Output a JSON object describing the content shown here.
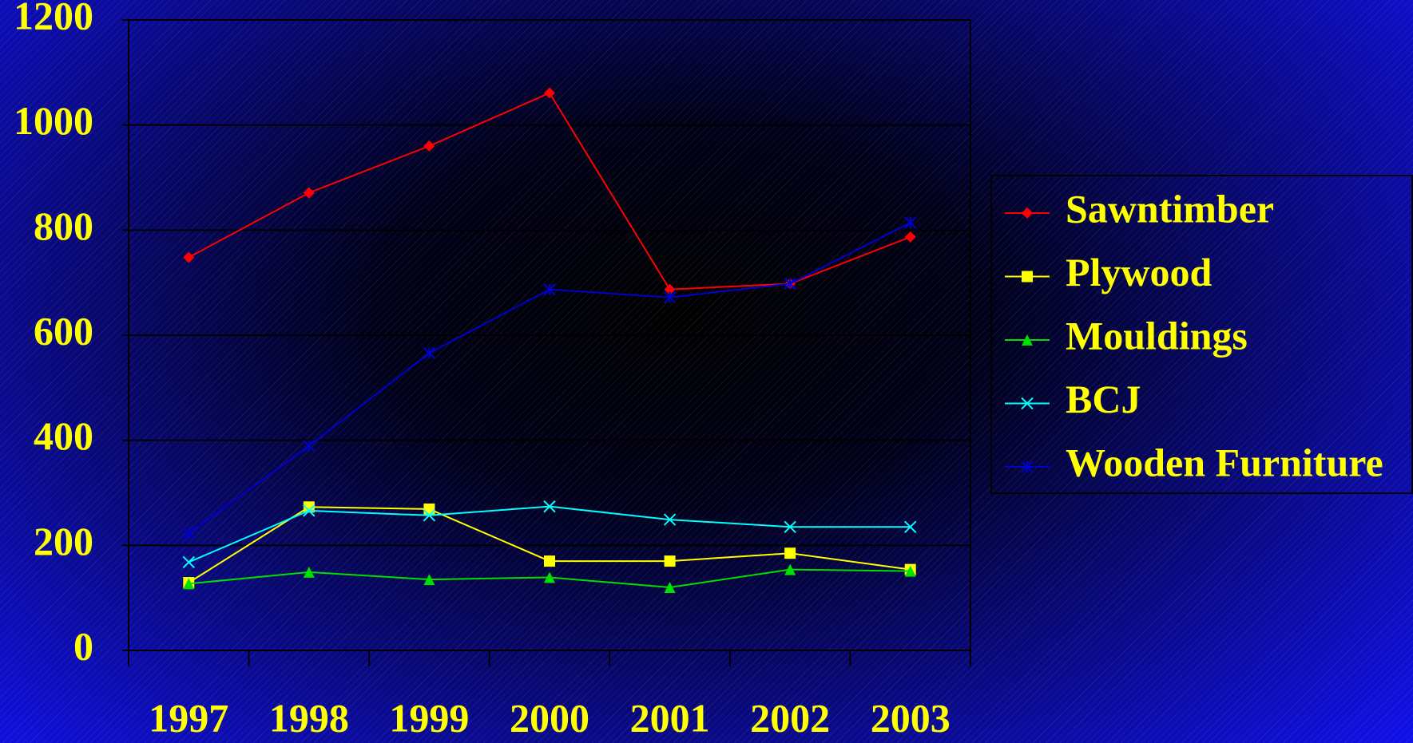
{
  "chart_data": {
    "type": "line",
    "categories": [
      "1997",
      "1998",
      "1999",
      "2000",
      "2001",
      "2002",
      "2003"
    ],
    "series": [
      {
        "name": "Sawntimber",
        "color": "#ff0000",
        "marker": "diamond",
        "values": [
          748,
          871,
          960,
          1061,
          687,
          698,
          787
        ]
      },
      {
        "name": "Plywood",
        "color": "#ffff00",
        "marker": "square",
        "values": [
          129,
          273,
          269,
          170,
          170,
          185,
          154
        ]
      },
      {
        "name": "Mouldings",
        "color": "#00e000",
        "marker": "triangle",
        "values": [
          127,
          149,
          135,
          139,
          120,
          154,
          151
        ]
      },
      {
        "name": "BCJ",
        "color": "#00ffff",
        "marker": "x",
        "values": [
          168,
          266,
          257,
          274,
          249,
          235,
          235
        ]
      },
      {
        "name": "Wooden Furniture",
        "color": "#0000d0",
        "marker": "star",
        "values": [
          223,
          389,
          566,
          687,
          672,
          698,
          814
        ]
      }
    ],
    "ylim": [
      0,
      1200
    ],
    "yticks": [
      0,
      200,
      400,
      600,
      800,
      1000,
      1200
    ],
    "grid": true,
    "legend": "right"
  }
}
